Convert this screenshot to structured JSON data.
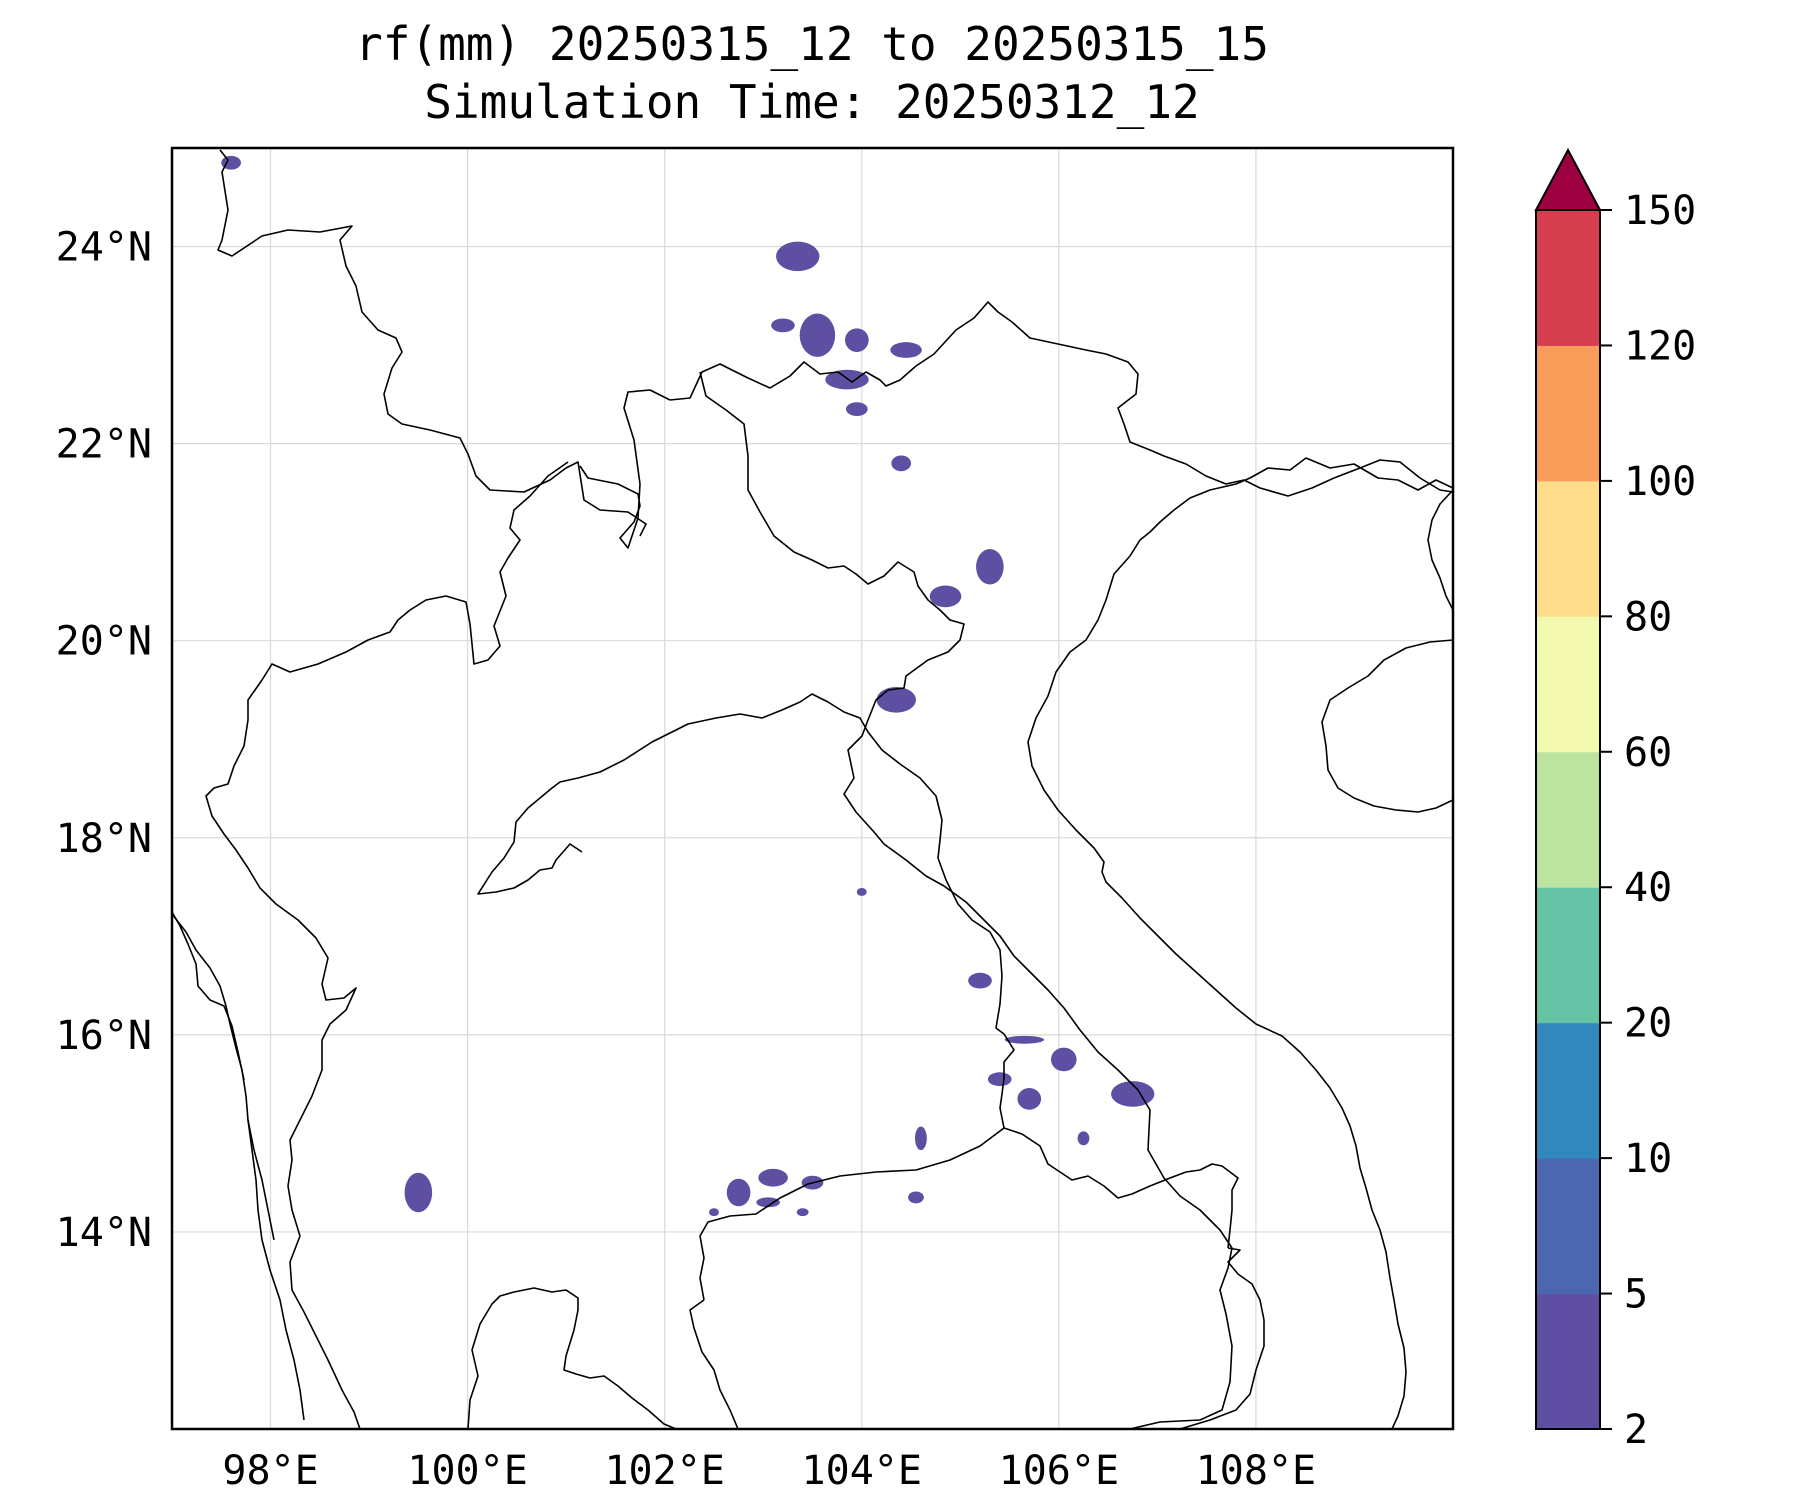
{
  "title_line1": "rf(mm) 20250315_12 to 20250315_15",
  "title_line2": "Simulation Time: 20250312_12",
  "map": {
    "lon_range": [
      97,
      110
    ],
    "lat_range": [
      12,
      25
    ],
    "lon_ticks": [
      {
        "value": 98,
        "label": "98°E"
      },
      {
        "value": 100,
        "label": "100°E"
      },
      {
        "value": 102,
        "label": "102°E"
      },
      {
        "value": 104,
        "label": "104°E"
      },
      {
        "value": 106,
        "label": "106°E"
      },
      {
        "value": 108,
        "label": "108°E"
      }
    ],
    "lat_ticks": [
      {
        "value": 24,
        "label": "24°N"
      },
      {
        "value": 22,
        "label": "22°N"
      },
      {
        "value": 20,
        "label": "20°N"
      },
      {
        "value": 18,
        "label": "18°N"
      },
      {
        "value": 16,
        "label": "16°N"
      },
      {
        "value": 14,
        "label": "14°N"
      }
    ],
    "grid": true,
    "border_color": "#000000"
  },
  "colorbar": {
    "levels": [
      2,
      5,
      10,
      20,
      40,
      60,
      80,
      100,
      120,
      150
    ],
    "labels": [
      "2",
      "5",
      "10",
      "20",
      "40",
      "60",
      "80",
      "100",
      "120",
      "150"
    ],
    "colors": [
      "#5e4fa2",
      "#4c66b0",
      "#3288bd",
      "#66c2a5",
      "#bde3a0",
      "#f2f8ad",
      "#fddd8c",
      "#fa9c5a",
      "#d53e4f",
      "#9e0142"
    ],
    "extend": "max",
    "extend_color": "#9e0142"
  },
  "chart_data": {
    "type": "filled-contour map",
    "variable": "rf(mm)",
    "rain_color": "#5e4fa2",
    "rain_areas_lonlat": [
      {
        "lon": 97.6,
        "lat": 24.85,
        "rx": 0.1,
        "ry": 0.07
      },
      {
        "lon": 103.35,
        "lat": 23.9,
        "rx": 0.22,
        "ry": 0.15
      },
      {
        "lon": 103.2,
        "lat": 23.2,
        "rx": 0.12,
        "ry": 0.07
      },
      {
        "lon": 103.55,
        "lat": 23.1,
        "rx": 0.18,
        "ry": 0.22
      },
      {
        "lon": 103.95,
        "lat": 23.05,
        "rx": 0.12,
        "ry": 0.12
      },
      {
        "lon": 103.85,
        "lat": 22.65,
        "rx": 0.22,
        "ry": 0.1
      },
      {
        "lon": 104.45,
        "lat": 22.95,
        "rx": 0.16,
        "ry": 0.08
      },
      {
        "lon": 103.95,
        "lat": 22.35,
        "rx": 0.11,
        "ry": 0.07
      },
      {
        "lon": 104.4,
        "lat": 21.8,
        "rx": 0.1,
        "ry": 0.08
      },
      {
        "lon": 105.3,
        "lat": 20.75,
        "rx": 0.14,
        "ry": 0.18
      },
      {
        "lon": 104.85,
        "lat": 20.45,
        "rx": 0.16,
        "ry": 0.11
      },
      {
        "lon": 104.35,
        "lat": 19.4,
        "rx": 0.2,
        "ry": 0.13
      },
      {
        "lon": 104.0,
        "lat": 17.45,
        "rx": 0.05,
        "ry": 0.04
      },
      {
        "lon": 105.2,
        "lat": 16.55,
        "rx": 0.12,
        "ry": 0.08
      },
      {
        "lon": 105.65,
        "lat": 15.95,
        "rx": 0.2,
        "ry": 0.04
      },
      {
        "lon": 106.05,
        "lat": 15.75,
        "rx": 0.13,
        "ry": 0.12
      },
      {
        "lon": 105.4,
        "lat": 15.55,
        "rx": 0.12,
        "ry": 0.07
      },
      {
        "lon": 105.7,
        "lat": 15.35,
        "rx": 0.12,
        "ry": 0.11
      },
      {
        "lon": 106.75,
        "lat": 15.4,
        "rx": 0.22,
        "ry": 0.13
      },
      {
        "lon": 104.6,
        "lat": 14.95,
        "rx": 0.06,
        "ry": 0.12
      },
      {
        "lon": 106.25,
        "lat": 14.95,
        "rx": 0.06,
        "ry": 0.07
      },
      {
        "lon": 99.5,
        "lat": 14.4,
        "rx": 0.14,
        "ry": 0.2
      },
      {
        "lon": 102.75,
        "lat": 14.4,
        "rx": 0.12,
        "ry": 0.14
      },
      {
        "lon": 103.1,
        "lat": 14.55,
        "rx": 0.15,
        "ry": 0.09
      },
      {
        "lon": 103.5,
        "lat": 14.5,
        "rx": 0.11,
        "ry": 0.07
      },
      {
        "lon": 103.05,
        "lat": 14.3,
        "rx": 0.12,
        "ry": 0.05
      },
      {
        "lon": 104.55,
        "lat": 14.35,
        "rx": 0.08,
        "ry": 0.06
      },
      {
        "lon": 103.4,
        "lat": 14.2,
        "rx": 0.06,
        "ry": 0.04
      },
      {
        "lon": 102.5,
        "lat": 14.2,
        "rx": 0.05,
        "ry": 0.04
      }
    ]
  }
}
